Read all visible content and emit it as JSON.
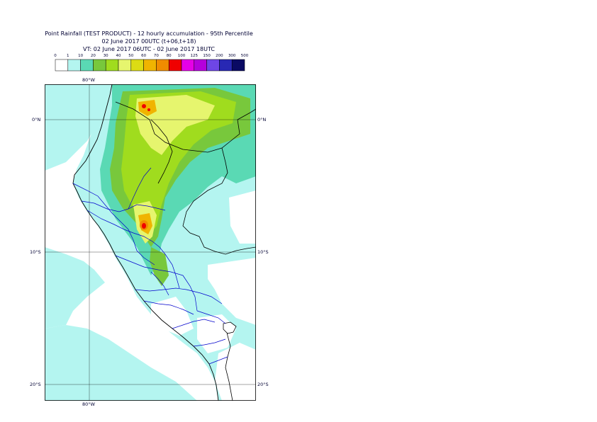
{
  "header": {
    "line1": "Point Rainfall (TEST PRODUCT) - 12 hourly accumulation - 95th Percentile",
    "line2": "02 June 2017 00UTC (t+06,t+18)",
    "line3": "VT: 02 June 2017 06UTC - 02 June 2017 18UTC"
  },
  "legend": {
    "thresholds": [
      "0",
      "1",
      "10",
      "20",
      "30",
      "40",
      "50",
      "60",
      "70",
      "80",
      "100",
      "125",
      "150",
      "200",
      "300",
      "500"
    ],
    "colors": [
      "#ffffff",
      "#b4f5f0",
      "#5ad9b4",
      "#78c83c",
      "#a0dc1e",
      "#e6f56e",
      "#dcdc14",
      "#f0b400",
      "#f08c00",
      "#f00000",
      "#e600e6",
      "#b400dc",
      "#6e46e6",
      "#2828b4",
      "#0a0a64"
    ]
  },
  "map": {
    "lat_labels": [
      "0°N",
      "10°S",
      "20°S"
    ],
    "lon_labels": [
      "80°W",
      "80°W"
    ],
    "land_color": "#b4f5f0",
    "ocean_color": "#ffffff",
    "border_color": "#000000",
    "region_color": "#0000cc"
  }
}
